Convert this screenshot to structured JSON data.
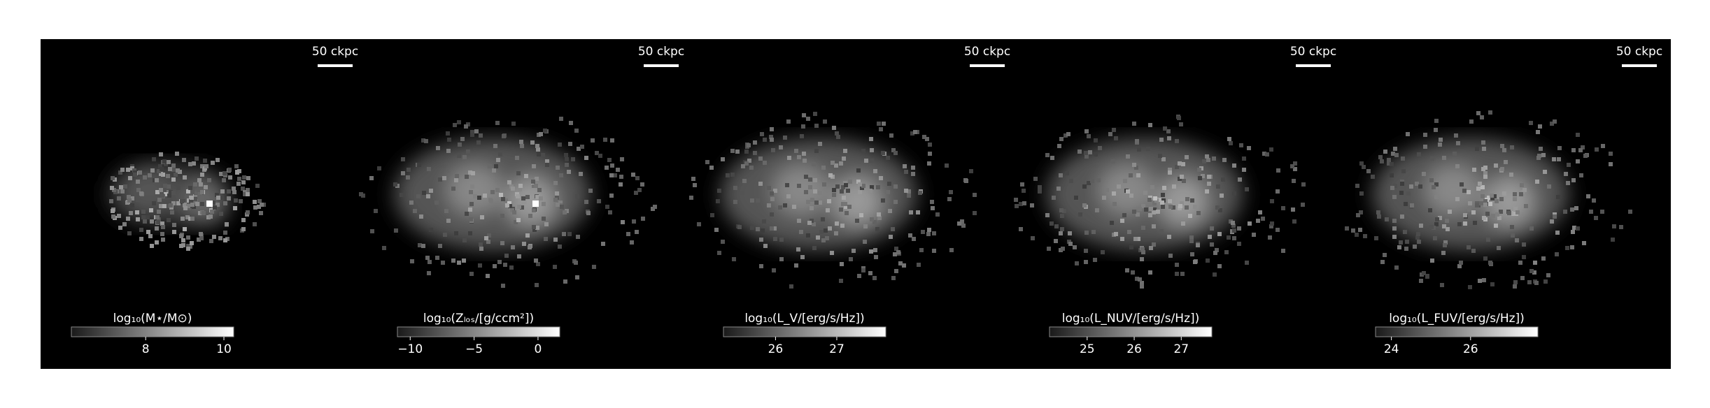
{
  "panels": [
    {
      "scale_bar": "50 ckpc",
      "colorbar": {
        "label": "log₁₀(M⋆/M⊙)",
        "lim": [
          6.1,
          10.25
        ],
        "ticks": [
          8,
          10
        ]
      }
    },
    {
      "scale_bar": "50 ckpc",
      "colorbar": {
        "label": "log₁₀(Zₗₒₛ/[g/ccm²])",
        "lim": [
          -11,
          1.7
        ],
        "ticks": [
          {
            "value": -10,
            "label": "−10"
          },
          {
            "value": -5,
            "label": "−5"
          },
          0
        ]
      }
    },
    {
      "scale_bar": "50 ckpc",
      "colorbar": {
        "label": "log₁₀(L_V/[erg/s/Hz])",
        "lim": [
          25.15,
          27.8
        ],
        "ticks": [
          26,
          27
        ]
      }
    },
    {
      "scale_bar": "50 ckpc",
      "colorbar": {
        "label": "log₁₀(L_NUV/[erg/s/Hz])",
        "lim": [
          24.2,
          27.65
        ],
        "ticks": [
          25,
          26,
          27
        ]
      }
    },
    {
      "scale_bar": "50 ckpc",
      "colorbar": {
        "label": "log₁₀(L_FUV/[erg/s/Hz])",
        "lim": [
          23.6,
          27.7
        ],
        "ticks": [
          24,
          26
        ]
      }
    }
  ]
}
